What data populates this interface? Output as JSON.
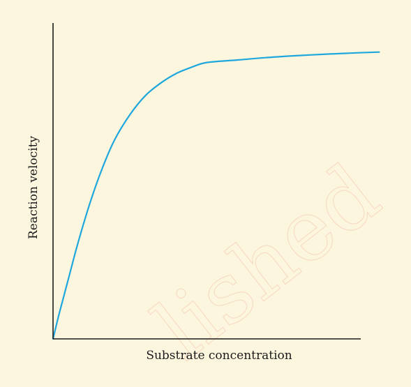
{
  "colors": {
    "panel_background": "#fdf6df",
    "curve": "#1ea7dd",
    "axis": "#1a1a1a",
    "watermark": "#f6dcc8"
  },
  "watermark": "lished",
  "chart_data": {
    "type": "line",
    "xlabel": "Substrate concentration",
    "ylabel": "Reaction velocity",
    "xlim": [
      0,
      100
    ],
    "ylim": [
      0,
      100
    ],
    "grid": false,
    "legend": "none",
    "tick_labels": "none",
    "series": [
      {
        "x": [
          0,
          2,
          5,
          8,
          12,
          16,
          20,
          25,
          30,
          35,
          40,
          45,
          50,
          60,
          70,
          80,
          90,
          95,
          100,
          106
        ],
        "values": [
          0,
          8,
          19,
          30,
          43,
          54,
          63,
          71,
          77,
          81,
          84,
          86,
          87.5,
          88.3,
          89.1,
          89.7,
          90.2,
          90.4,
          90.6,
          90.8
        ]
      }
    ]
  }
}
